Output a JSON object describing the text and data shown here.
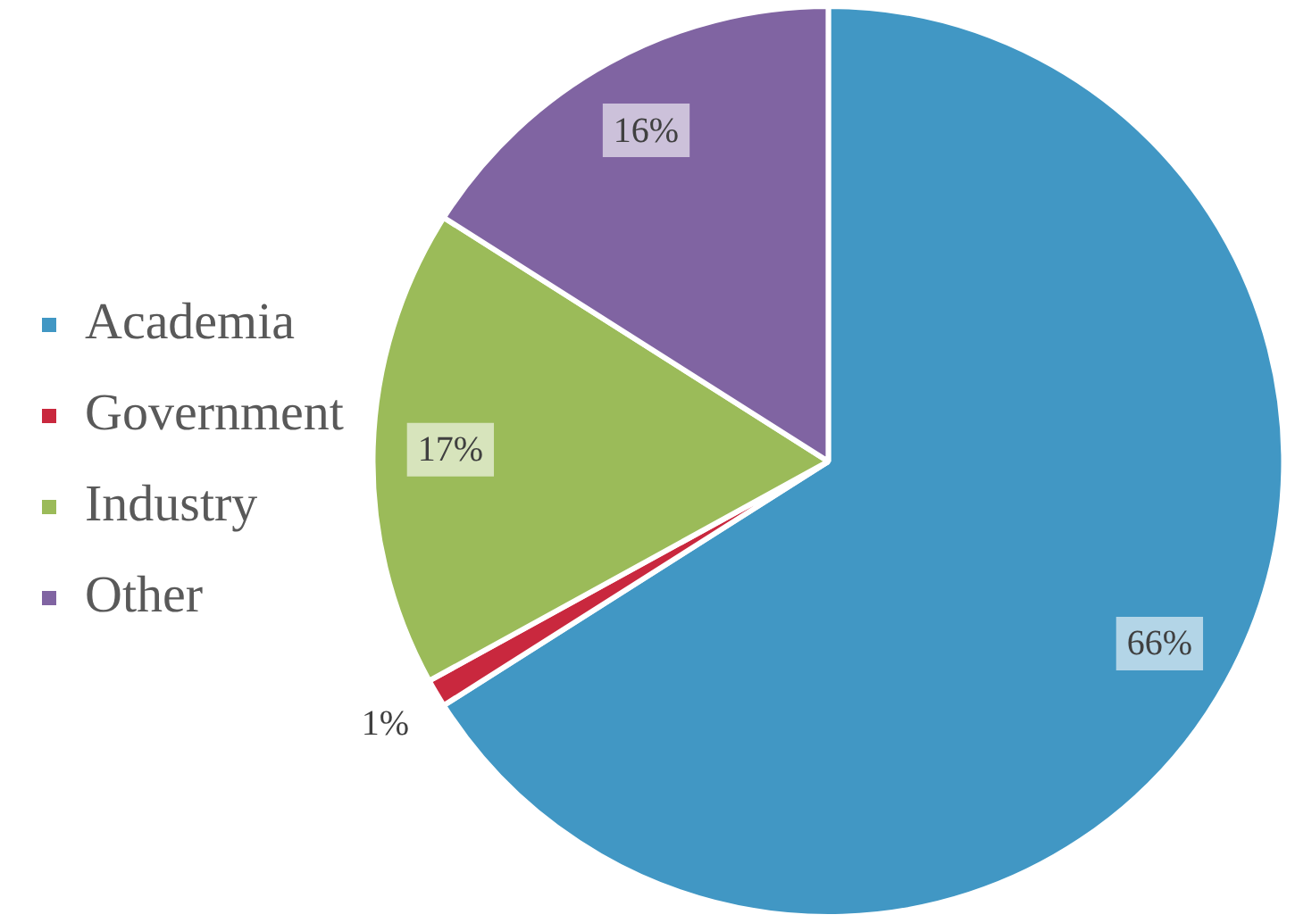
{
  "chart_data": {
    "type": "pie",
    "categories": [
      "Academia",
      "Government",
      "Industry",
      "Other"
    ],
    "values": [
      66,
      1,
      17,
      16
    ],
    "colors": [
      "#4197c4",
      "#c9283e",
      "#9bbb59",
      "#8064a2"
    ],
    "value_labels": [
      "66%",
      "1%",
      "17%",
      "16%"
    ],
    "legend": "left"
  }
}
